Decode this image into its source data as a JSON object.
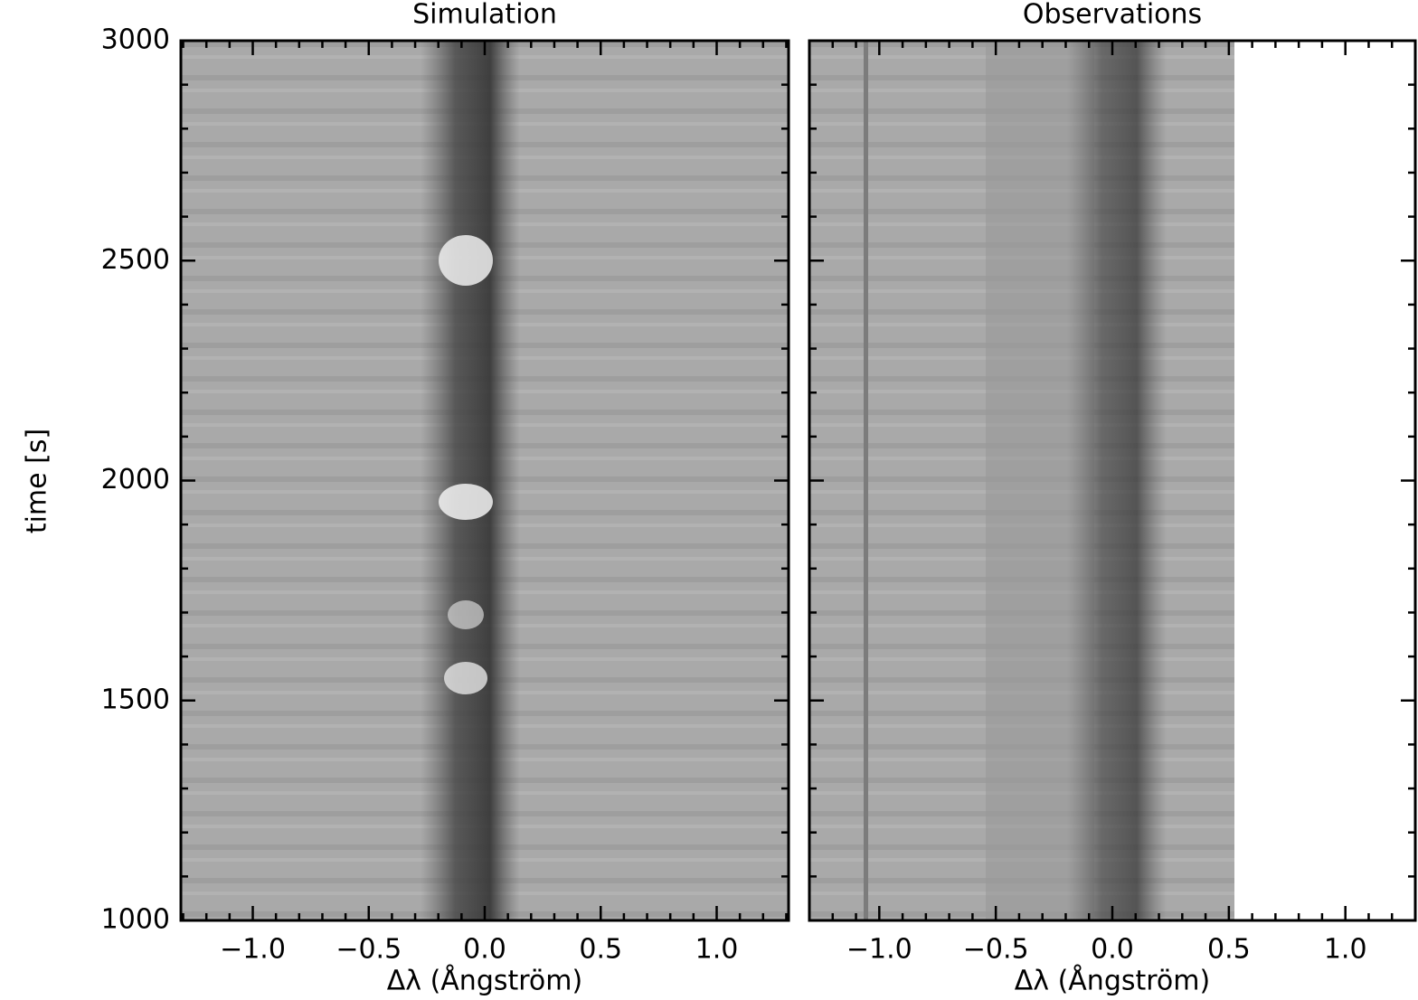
{
  "chart_data": [
    {
      "type": "spectrogram",
      "title": "Simulation",
      "xlabel": "Δλ (Ångström)",
      "ylabel": "time [s]",
      "xlim": [
        -1.31,
        1.31
      ],
      "xticks": [
        {
          "value": -1,
          "label": "−1.0"
        },
        {
          "value": -0.5,
          "label": "−0.5"
        },
        {
          "value": 0,
          "label": "0.0"
        },
        {
          "value": 0.5,
          "label": "0.5"
        },
        {
          "value": 1,
          "label": "1.0"
        }
      ],
      "xminor": [
        -1.3,
        -1.2,
        -1.1,
        -0.9,
        -0.8,
        -0.7,
        -0.6,
        -0.4,
        -0.3,
        -0.2,
        -0.1,
        0.1,
        0.2,
        0.3,
        0.4,
        0.6,
        0.7,
        0.8,
        0.9,
        1.1,
        1.2,
        1.3
      ],
      "ylim": [
        1000,
        3000
      ],
      "yticks": [
        1000,
        1500,
        2000,
        2500,
        3000
      ],
      "yminor": [
        1100,
        1200,
        1300,
        1400,
        1600,
        1700,
        1800,
        1900,
        2100,
        2200,
        2300,
        2400,
        2600,
        2700,
        2800,
        2900
      ]
    },
    {
      "type": "spectrogram",
      "title": "Observations",
      "xlabel": "Δλ (Ångström)",
      "xlim": [
        -1.3,
        1.3
      ],
      "xticks": [
        {
          "value": -1,
          "label": "−1.0"
        },
        {
          "value": -0.5,
          "label": "−0.5"
        },
        {
          "value": 0,
          "label": "0.0"
        },
        {
          "value": 0.5,
          "label": "0.5"
        },
        {
          "value": 1,
          "label": "1.0"
        }
      ],
      "xminor": [
        -1.2,
        -1.1,
        -0.9,
        -0.8,
        -0.7,
        -0.6,
        -0.4,
        -0.3,
        -0.2,
        -0.1,
        0.1,
        0.2,
        0.3,
        0.4,
        0.6,
        0.7,
        0.8,
        0.9,
        1.1,
        1.2
      ],
      "ylim": [
        1000,
        3000
      ],
      "yticks": [
        1000,
        1500,
        2000,
        2500,
        3000
      ],
      "yminor": [
        1100,
        1200,
        1300,
        1400,
        1600,
        1700,
        1800,
        1900,
        2100,
        2200,
        2300,
        2400,
        2600,
        2700,
        2800,
        2900
      ]
    }
  ]
}
